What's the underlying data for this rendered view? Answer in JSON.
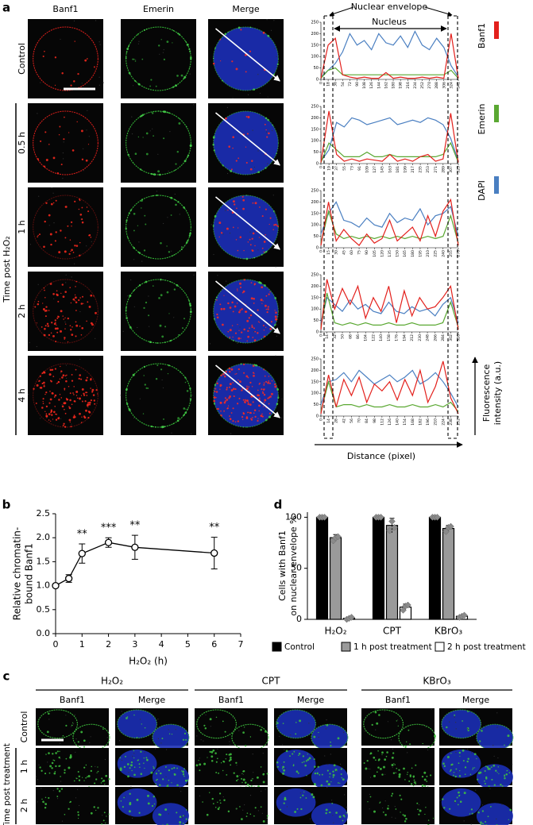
{
  "figure": {
    "panel_letters": [
      "a",
      "b",
      "c",
      "d"
    ],
    "panel_a": {
      "columns": [
        "Banf1",
        "Emerin",
        "Merge"
      ],
      "rows": [
        "Control",
        "0.5 h",
        "1 h",
        "2 h",
        "4 h"
      ],
      "side_label": "Time post H₂O₂",
      "nuclear_envelope": "Nuclear envelope",
      "nucleus": "Nucleus",
      "intensity_label": [
        "Fluorescence",
        "intensity (a.u.)"
      ],
      "distance_label": "Distance (pixel)"
    },
    "panel_c": {
      "treatments": [
        "H₂O₂",
        "CPT",
        "KBrO₃"
      ],
      "columns": [
        "Banf1",
        "Merge"
      ],
      "rows": [
        "Control",
        "1 h",
        "2 h"
      ],
      "side_label": "Time post treatment"
    }
  },
  "chart_data": [
    {
      "type": "profile",
      "x": [
        0,
        18,
        36,
        54,
        72,
        90,
        108,
        126,
        144,
        162,
        180,
        198,
        216,
        234,
        252,
        270,
        288,
        306,
        324,
        342
      ],
      "xlim": [
        0,
        342
      ],
      "xticks": [
        0,
        18,
        36,
        54,
        72,
        90,
        108,
        126,
        144,
        162,
        180,
        198,
        216,
        234,
        252,
        270,
        288,
        306,
        324,
        342
      ],
      "ylim": [
        0,
        250
      ],
      "yticks": [
        0,
        50,
        100,
        150,
        200,
        250
      ],
      "series": [
        {
          "name": "Banf1",
          "color": "#e3201c",
          "values": [
            5,
            150,
            180,
            20,
            10,
            5,
            10,
            5,
            5,
            30,
            5,
            10,
            5,
            5,
            10,
            5,
            10,
            5,
            200,
            5
          ]
        },
        {
          "name": "Emerin",
          "color": "#5aa832",
          "values": [
            5,
            40,
            50,
            20,
            20,
            20,
            20,
            20,
            20,
            20,
            20,
            20,
            20,
            20,
            20,
            20,
            20,
            20,
            40,
            5
          ]
        },
        {
          "name": "DAPI",
          "color": "#4a7fc1",
          "values": [
            10,
            40,
            70,
            120,
            200,
            150,
            170,
            130,
            200,
            160,
            150,
            190,
            140,
            210,
            150,
            130,
            180,
            140,
            60,
            10
          ]
        }
      ]
    },
    {
      "type": "profile",
      "x": [
        0,
        19,
        37,
        55,
        73,
        91,
        109,
        127,
        145,
        163,
        181,
        199,
        217,
        235,
        253,
        271,
        289,
        307,
        325
      ],
      "xlim": [
        0,
        325
      ],
      "xticks": [
        0,
        19,
        37,
        55,
        73,
        91,
        109,
        127,
        145,
        163,
        181,
        199,
        217,
        235,
        253,
        271,
        289,
        307,
        325
      ],
      "ylim": [
        0,
        250
      ],
      "yticks": [
        0,
        50,
        100,
        150,
        200,
        250
      ],
      "series": [
        {
          "name": "Banf1",
          "color": "#e3201c",
          "values": [
            5,
            230,
            40,
            10,
            20,
            10,
            20,
            15,
            10,
            40,
            10,
            20,
            10,
            30,
            40,
            10,
            20,
            220,
            5
          ]
        },
        {
          "name": "Emerin",
          "color": "#5aa832",
          "values": [
            5,
            90,
            60,
            30,
            30,
            30,
            50,
            30,
            30,
            40,
            30,
            30,
            30,
            30,
            30,
            30,
            40,
            90,
            5
          ]
        },
        {
          "name": "DAPI",
          "color": "#4a7fc1",
          "values": [
            10,
            60,
            180,
            160,
            200,
            190,
            170,
            180,
            190,
            200,
            170,
            180,
            190,
            180,
            200,
            190,
            170,
            110,
            10
          ]
        }
      ]
    },
    {
      "type": "profile",
      "x": [
        0,
        15,
        30,
        45,
        60,
        75,
        90,
        105,
        120,
        135,
        150,
        165,
        180,
        195,
        210,
        225,
        240,
        255,
        270
      ],
      "xlim": [
        0,
        270
      ],
      "xticks": [
        0,
        15,
        30,
        45,
        60,
        75,
        90,
        105,
        120,
        135,
        150,
        165,
        180,
        195,
        210,
        225,
        240,
        255,
        270
      ],
      "ylim": [
        0,
        250
      ],
      "yticks": [
        0,
        50,
        100,
        150,
        200,
        250
      ],
      "series": [
        {
          "name": "Banf1",
          "color": "#e3201c",
          "values": [
            10,
            200,
            30,
            80,
            40,
            10,
            60,
            20,
            40,
            120,
            30,
            60,
            90,
            30,
            140,
            50,
            160,
            210,
            10
          ]
        },
        {
          "name": "Emerin",
          "color": "#5aa832",
          "values": [
            20,
            160,
            60,
            40,
            50,
            40,
            50,
            40,
            50,
            40,
            50,
            40,
            50,
            40,
            50,
            40,
            50,
            140,
            20
          ]
        },
        {
          "name": "DAPI",
          "color": "#4a7fc1",
          "values": [
            60,
            150,
            200,
            120,
            110,
            90,
            130,
            100,
            90,
            150,
            110,
            130,
            120,
            170,
            100,
            140,
            150,
            180,
            50
          ]
        }
      ]
    },
    {
      "type": "profile",
      "x": [
        0,
        14,
        32,
        50,
        68,
        86,
        104,
        122,
        140,
        158,
        176,
        194,
        212,
        230,
        248,
        266,
        284,
        302,
        320
      ],
      "xlim": [
        0,
        320
      ],
      "xticks": [
        0,
        14,
        32,
        50,
        68,
        86,
        104,
        122,
        140,
        158,
        176,
        194,
        212,
        230,
        248,
        266,
        284,
        302,
        320
      ],
      "ylim": [
        0,
        250
      ],
      "yticks": [
        0,
        50,
        100,
        150,
        200,
        250
      ],
      "series": [
        {
          "name": "Banf1",
          "color": "#e3201c",
          "values": [
            10,
            230,
            100,
            190,
            120,
            200,
            60,
            150,
            90,
            200,
            40,
            180,
            70,
            150,
            100,
            110,
            150,
            200,
            10
          ]
        },
        {
          "name": "Emerin",
          "color": "#5aa832",
          "values": [
            20,
            170,
            40,
            30,
            40,
            30,
            40,
            30,
            30,
            40,
            30,
            30,
            40,
            30,
            30,
            30,
            40,
            130,
            20
          ]
        },
        {
          "name": "DAPI",
          "color": "#4a7fc1",
          "values": [
            40,
            150,
            120,
            90,
            140,
            100,
            120,
            90,
            80,
            130,
            90,
            80,
            110,
            90,
            100,
            70,
            120,
            150,
            40
          ]
        }
      ]
    },
    {
      "type": "profile",
      "x": [
        0,
        14,
        28,
        42,
        56,
        70,
        84,
        98,
        112,
        126,
        140,
        154,
        168,
        182,
        196,
        210,
        224,
        238,
        252
      ],
      "xlim": [
        0,
        252
      ],
      "xticks": [
        0,
        14,
        28,
        42,
        56,
        70,
        84,
        98,
        112,
        126,
        140,
        154,
        168,
        182,
        196,
        210,
        224,
        238,
        252
      ],
      "ylim": [
        0,
        250
      ],
      "yticks": [
        0,
        50,
        100,
        150,
        200,
        250
      ],
      "series": [
        {
          "name": "Banf1",
          "color": "#e3201c",
          "values": [
            10,
            180,
            40,
            160,
            90,
            170,
            60,
            140,
            110,
            150,
            70,
            160,
            90,
            200,
            60,
            130,
            240,
            80,
            10
          ]
        },
        {
          "name": "Emerin",
          "color": "#5aa832",
          "values": [
            20,
            150,
            40,
            50,
            50,
            40,
            50,
            40,
            40,
            50,
            40,
            40,
            50,
            40,
            40,
            50,
            40,
            60,
            20
          ]
        },
        {
          "name": "DAPI",
          "color": "#4a7fc1",
          "values": [
            50,
            150,
            160,
            190,
            150,
            200,
            170,
            140,
            160,
            180,
            150,
            170,
            200,
            140,
            160,
            190,
            150,
            100,
            40
          ]
        }
      ]
    },
    {
      "type": "line",
      "x": [
        0,
        0.5,
        1,
        2,
        3,
        6
      ],
      "values": [
        1.0,
        1.15,
        1.67,
        1.9,
        1.8,
        1.68
      ],
      "errors": [
        0.03,
        0.08,
        0.2,
        0.1,
        0.25,
        0.33
      ],
      "xlim": [
        0,
        7
      ],
      "xticks": [
        0,
        1,
        2,
        3,
        4,
        5,
        6,
        7
      ],
      "ylim": [
        0,
        2.5
      ],
      "yticks": [
        {
          "value": 0,
          "label": "0.0"
        },
        {
          "value": 0.5,
          "label": "0.5"
        },
        {
          "value": 1,
          "label": "1.0"
        },
        {
          "value": 1.5,
          "label": "1.5"
        },
        {
          "value": 2,
          "label": "2.0"
        },
        {
          "value": 2.5,
          "label": "2.5"
        }
      ],
      "xlabel": "H₂O₂ (h)",
      "ylabel": [
        "Relative chromatin-",
        "bound Banf1"
      ],
      "color": "#000000",
      "annotations": [
        {
          "x": 1,
          "text": "**"
        },
        {
          "x": 2,
          "text": "***"
        },
        {
          "x": 3,
          "text": "**"
        },
        {
          "x": 6,
          "text": "**"
        }
      ]
    },
    {
      "type": "bar",
      "categories": [
        "H₂O₂",
        "CPT",
        "KBrO₃"
      ],
      "ylim": [
        0,
        105
      ],
      "yticks": [
        0,
        50,
        100
      ],
      "ylabel": [
        "Cells with Banf1",
        "on nuclear envelope %"
      ],
      "legend": "bottom",
      "series": [
        {
          "name": "Control",
          "color": "#000000",
          "values": [
            100,
            100,
            100
          ],
          "errors": [
            0,
            0,
            0
          ],
          "replicates": [
            [
              100,
              100,
              100
            ],
            [
              100,
              100,
              100
            ],
            [
              100,
              100,
              100
            ]
          ]
        },
        {
          "name": "1 h post treatment",
          "color": "#9a9a9a",
          "values": [
            80,
            92,
            89
          ],
          "errors": [
            3,
            7,
            3
          ],
          "replicates": [
            [
              77,
              80,
              81
            ],
            [
              87,
              96,
              90
            ],
            [
              86,
              90,
              91
            ]
          ]
        },
        {
          "name": "2 h post treatment",
          "color": "#ffffff",
          "values": [
            1,
            12,
            3
          ],
          "errors": [
            1,
            3,
            1
          ],
          "replicates": [
            [
              0,
              1,
              2
            ],
            [
              9,
              13,
              14
            ],
            [
              2,
              3,
              4
            ]
          ]
        }
      ]
    }
  ]
}
